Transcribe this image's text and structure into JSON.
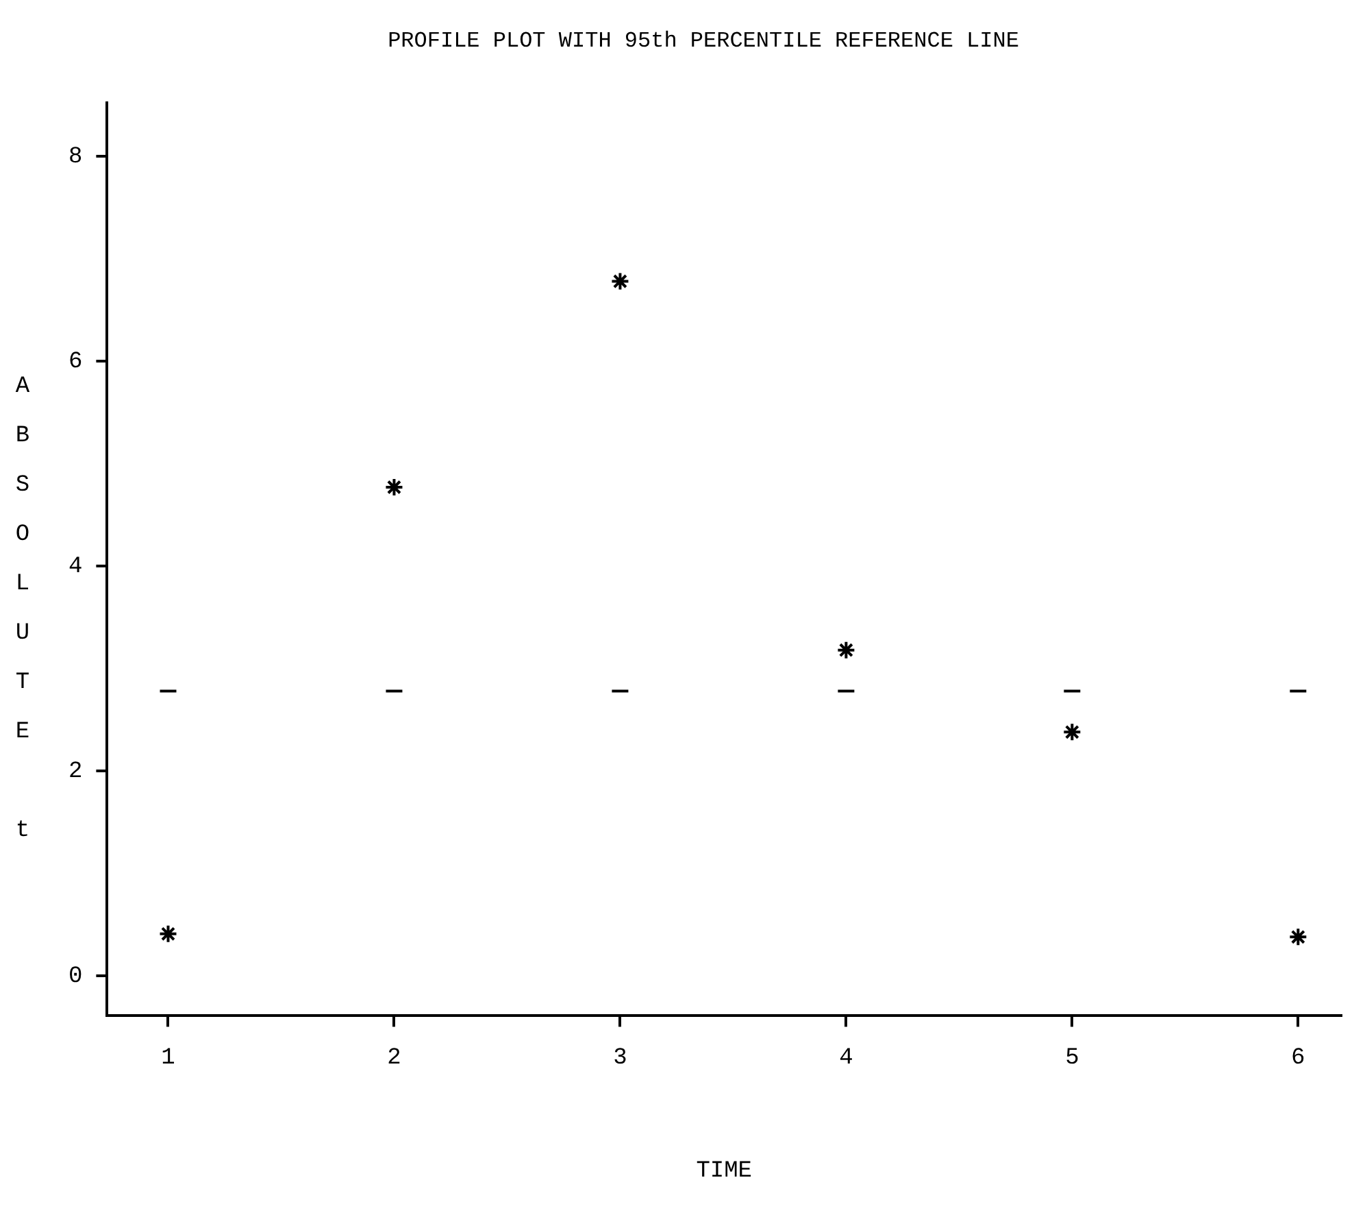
{
  "chart_data": {
    "type": "scatter",
    "title": "PROFILE PLOT WITH 95th PERCENTILE REFERENCE LINE",
    "xlabel": "TIME",
    "ylabel": "ABSOLUTE t",
    "x": [
      1,
      2,
      3,
      4,
      5,
      6
    ],
    "series": [
      {
        "color": "#000000",
        "values": [
          0.41,
          4.77,
          6.78,
          3.18,
          2.38,
          0.38
        ]
      }
    ],
    "xlim": [
      0.73,
      6.19
    ],
    "xticks": [
      1,
      2,
      3,
      4,
      5,
      6
    ],
    "ylim": [
      -0.39,
      8.52
    ],
    "yticks": [
      0,
      2,
      4,
      6,
      8
    ],
    "ref_lines": [
      {
        "axis": "y",
        "value": 2.78,
        "color": "#000000",
        "line_style": "dashed"
      }
    ],
    "marker": "cross",
    "grid": false,
    "legend": false
  }
}
